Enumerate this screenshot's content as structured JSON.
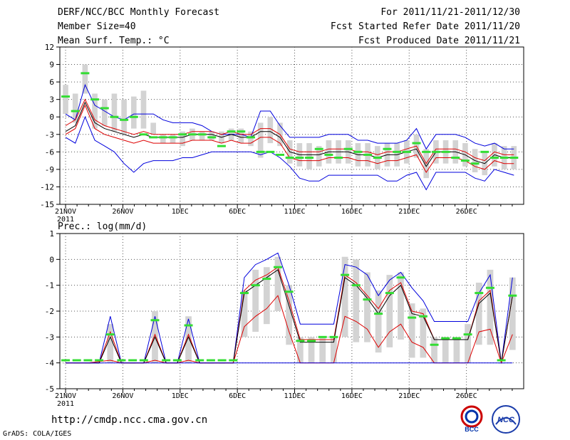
{
  "header": {
    "left": [
      "DERF/NCC/BCC Monthly Forecast",
      "Member Size=40",
      "Mean Surf. Temp.: °C"
    ],
    "right": [
      "For 2011/11/21-2011/12/30",
      "Fcst Started Refer Date 2011/11/20",
      "Fcst Produced Date 2011/11/21"
    ]
  },
  "footer": {
    "url": "http://cmdp.ncc.cma.gov.cn",
    "credit": "GrADS: COLA/IGES",
    "logo_left_text": "BCC",
    "logo_right_text": "NCC"
  },
  "colors": {
    "envelope": "#0000dd",
    "sigma": "#dd0000",
    "mean": "#000000",
    "box": "#d3d3d3",
    "mode": "#33dd33"
  },
  "chart_data": [
    {
      "type": "line",
      "title": "Mean Surf. Temp.: °C",
      "ylim": [
        -15,
        12
      ],
      "yticks": [
        12,
        9,
        6,
        3,
        0,
        -3,
        -6,
        -9,
        -12,
        -15
      ],
      "xlabels": [
        {
          "day": 1,
          "label": "21NOV",
          "sub": "2011"
        },
        {
          "day": 6,
          "label": "26NOV"
        },
        {
          "day": 11,
          "label": "1DEC"
        },
        {
          "day": 16,
          "label": "6DEC"
        },
        {
          "day": 21,
          "label": "11DEC"
        },
        {
          "day": 26,
          "label": "16DEC"
        },
        {
          "day": 31,
          "label": "21DEC"
        },
        {
          "day": 36,
          "label": "26DEC"
        }
      ],
      "series": [
        {
          "name": "max",
          "color": "blue",
          "values": [
            0.5,
            -0.5,
            5.5,
            2,
            1,
            0,
            -0.5,
            0.5,
            0.5,
            0.5,
            -0.5,
            -1,
            -1,
            -1,
            -1.5,
            -2.5,
            -3,
            -3,
            -3,
            -3.5,
            1,
            1,
            -1.5,
            -3.5,
            -3.5,
            -3.5,
            -3.5,
            -3,
            -3,
            -3,
            -4,
            -4,
            -4.5,
            -4.5,
            -4.5,
            -4,
            -2,
            -5.5,
            -3,
            -3,
            -3,
            -3.5,
            -4.5,
            -5,
            -4.5,
            -5.5,
            -5.5
          ]
        },
        {
          "name": "mean+sd",
          "color": "red",
          "values": [
            -1.5,
            -0.5,
            3,
            -0.5,
            -1.5,
            -2,
            -2.5,
            -3,
            -2.5,
            -3,
            -3,
            -3,
            -3,
            -2.5,
            -2.5,
            -2.5,
            -3,
            -2.5,
            -3,
            -3,
            -2,
            -2,
            -3,
            -5.5,
            -6,
            -6,
            -6,
            -5.5,
            -5.5,
            -5.5,
            -6,
            -6,
            -6.5,
            -6,
            -6,
            -5.5,
            -5,
            -8,
            -5.5,
            -5.5,
            -5.5,
            -6,
            -7,
            -7.5,
            -6,
            -6.5,
            -6.5
          ]
        },
        {
          "name": "mean",
          "color": "black",
          "values": [
            -2.5,
            -1.5,
            2.5,
            -1,
            -2,
            -2.5,
            -3,
            -3.5,
            -3,
            -3.5,
            -3.5,
            -3.5,
            -3.5,
            -3,
            -3,
            -3,
            -3.5,
            -3,
            -3.5,
            -3.5,
            -2.5,
            -2.5,
            -3.5,
            -6,
            -6.5,
            -6.5,
            -6.5,
            -6,
            -6,
            -6,
            -6.5,
            -6.5,
            -7,
            -6.5,
            -6.5,
            -6,
            -5.5,
            -8.5,
            -6,
            -6,
            -6,
            -6.5,
            -7.5,
            -8,
            -6.5,
            -7,
            -7
          ]
        },
        {
          "name": "mean-sd",
          "color": "red",
          "values": [
            -3,
            -2,
            2,
            -2,
            -3,
            -3.5,
            -4,
            -4.5,
            -4,
            -4.5,
            -4.5,
            -4.5,
            -4.5,
            -4,
            -4,
            -4,
            -4.5,
            -4,
            -4.5,
            -4.5,
            -3.5,
            -3.5,
            -4.5,
            -7,
            -7.5,
            -7.5,
            -7.5,
            -7,
            -7,
            -7,
            -7.5,
            -7.5,
            -8,
            -7.5,
            -7.5,
            -7,
            -6.5,
            -9.5,
            -7,
            -7,
            -7,
            -7.5,
            -8.5,
            -9,
            -7.5,
            -8,
            -8
          ]
        },
        {
          "name": "min",
          "color": "blue",
          "values": [
            -3.5,
            -4.5,
            0,
            -4,
            -5,
            -6,
            -8,
            -9.5,
            -8,
            -7.5,
            -7.5,
            -7.5,
            -7,
            -7,
            -6.5,
            -6,
            -6,
            -6,
            -6,
            -6,
            -6.5,
            -6,
            -7,
            -8.5,
            -10.5,
            -11,
            -11,
            -10,
            -10,
            -10,
            -10,
            -10,
            -10,
            -11,
            -11,
            -10,
            -9.5,
            -12.5,
            -9.5,
            -9.5,
            -9.5,
            -9.5,
            -10.5,
            -11,
            -9,
            -9.5,
            -10
          ]
        }
      ],
      "boxes": [
        [
          0.5,
          5.5
        ],
        [
          -1,
          4
        ],
        [
          4,
          9
        ],
        [
          -2,
          4
        ],
        [
          -1.5,
          3
        ],
        [
          -2.5,
          4
        ],
        [
          -3,
          3
        ],
        [
          -2,
          3.5
        ],
        [
          -2,
          4.5
        ],
        [
          -3,
          -1
        ],
        [
          -4.5,
          -3
        ],
        [
          -4.5,
          -3
        ],
        [
          -5,
          -2.5
        ],
        [
          -4,
          -2
        ],
        [
          -4,
          -2.5
        ],
        [
          -4,
          -2.5
        ],
        [
          -4.5,
          -2.5
        ],
        [
          -4,
          -2
        ],
        [
          -4.5,
          -2
        ],
        [
          -5,
          -2.5
        ],
        [
          -7,
          -1
        ],
        [
          -4.5,
          0
        ],
        [
          -5,
          -1
        ],
        [
          -8,
          -4
        ],
        [
          -8.5,
          -4.5
        ],
        [
          -9,
          -4.5
        ],
        [
          -8.5,
          -5
        ],
        [
          -8,
          -4
        ],
        [
          -8,
          -4
        ],
        [
          -8,
          -4
        ],
        [
          -8.5,
          -4.5
        ],
        [
          -8.5,
          -4.5
        ],
        [
          -9,
          -5
        ],
        [
          -8.5,
          -4.5
        ],
        [
          -8.5,
          -4.5
        ],
        [
          -8,
          -4
        ],
        [
          -7,
          -3
        ],
        [
          -10.5,
          -5.5
        ],
        [
          -8,
          -4
        ],
        [
          -8,
          -4
        ],
        [
          -8,
          -4
        ],
        [
          -8.5,
          -4.5
        ],
        [
          -9.5,
          -5.5
        ],
        [
          -10,
          -6
        ],
        [
          -8.5,
          -4.5
        ],
        [
          -9,
          -5
        ],
        [
          -9,
          -5
        ]
      ],
      "mode": [
        3.5,
        1,
        7.5,
        3,
        1.5,
        0,
        -0.5,
        0,
        -3,
        -3.5,
        -3.5,
        -3.5,
        -3,
        -3,
        -3,
        -3.5,
        -5,
        -2.5,
        -2.5,
        -3.5,
        -6,
        -6,
        -6.5,
        -7,
        -7,
        -7,
        -5.5,
        -6.5,
        -7,
        -5.5,
        -6,
        -6.5,
        -7,
        -5.5,
        -6,
        -6,
        -4.5,
        -6,
        -6,
        -6,
        -7,
        -7.5,
        -8,
        -6,
        -7,
        -7,
        -7
      ]
    },
    {
      "type": "line",
      "title": "Prec.: log(mm/d)",
      "ylim": [
        -5,
        1
      ],
      "yticks": [
        1,
        0,
        -1,
        -2,
        -3,
        -4,
        -5
      ],
      "xlabels": [
        {
          "day": 1,
          "label": "21NOV",
          "sub": "2011"
        },
        {
          "day": 6,
          "label": "26NOV"
        },
        {
          "day": 11,
          "label": "1DEC"
        },
        {
          "day": 16,
          "label": "6DEC"
        },
        {
          "day": 21,
          "label": "11DEC"
        },
        {
          "day": 26,
          "label": "16DEC"
        },
        {
          "day": 31,
          "label": "21DEC"
        },
        {
          "day": 36,
          "label": "26DEC"
        }
      ],
      "series": [
        {
          "name": "max",
          "color": "blue",
          "values": [
            -4,
            -4,
            -4,
            -4,
            -2.2,
            -4,
            -4,
            -4,
            -2.2,
            -4,
            -4,
            -2.3,
            -4,
            -4,
            -4,
            -4,
            -0.7,
            -0.2,
            0,
            0.25,
            -1,
            -2.5,
            -2.5,
            -2.5,
            -2.5,
            -0.2,
            -0.3,
            -0.6,
            -1.4,
            -0.8,
            -0.5,
            -1.1,
            -1.6,
            -2.4,
            -2.4,
            -2.4,
            -2.4,
            -1.3,
            -0.6,
            -4,
            -0.7
          ]
        },
        {
          "name": "mean+sd",
          "color": "red",
          "values": [
            -4,
            -4,
            -4,
            -4,
            -2.8,
            -4,
            -4,
            -4,
            -2.9,
            -4,
            -4,
            -2.9,
            -4,
            -4,
            -4,
            -4,
            -1.2,
            -0.8,
            -0.6,
            -0.3,
            -1.6,
            -3.1,
            -3.1,
            -3.1,
            -3.1,
            -0.6,
            -0.9,
            -1.4,
            -1.9,
            -1.2,
            -0.9,
            -2,
            -2.1,
            -3.1,
            -3.1,
            -3.1,
            -3.1,
            -1.6,
            -1.2,
            -4,
            -1.4
          ]
        },
        {
          "name": "mean",
          "color": "black",
          "values": [
            -4,
            -4,
            -4,
            -4,
            -3,
            -4,
            -4,
            -4,
            -3,
            -4,
            -4,
            -3,
            -4,
            -4,
            -4,
            -4,
            -1.3,
            -1,
            -0.7,
            -0.4,
            -1.8,
            -3.2,
            -3.2,
            -3.2,
            -3.2,
            -0.7,
            -1,
            -1.5,
            -2.1,
            -1.4,
            -1,
            -2.1,
            -2.2,
            -3.1,
            -3.1,
            -3.1,
            -3.1,
            -1.7,
            -1.3,
            -4,
            -1.4
          ]
        },
        {
          "name": "mean-sd",
          "color": "red",
          "values": [
            -4,
            -4,
            -4,
            -3.95,
            -3.9,
            -4,
            -4,
            -4,
            -3.9,
            -4,
            -4,
            -3.9,
            -4,
            -4,
            -4,
            -4,
            -2.6,
            -2.2,
            -1.9,
            -1.4,
            -2.8,
            -4,
            -4,
            -4,
            -4,
            -2.2,
            -2.4,
            -2.7,
            -3.4,
            -2.8,
            -2.5,
            -3.2,
            -3.4,
            -4,
            -4,
            -4,
            -4,
            -2.8,
            -2.7,
            -4,
            -2.9
          ]
        },
        {
          "name": "min",
          "color": "blue",
          "values": [
            -4,
            -4,
            -4,
            -4,
            -4,
            -4,
            -4,
            -4,
            -4,
            -4,
            -4,
            -4,
            -4,
            -4,
            -4,
            -4,
            -4,
            -4,
            -4,
            -4,
            -4,
            -4,
            -4,
            -4,
            -4,
            -4,
            -4,
            -4,
            -4,
            -4,
            -4,
            -4,
            -4,
            -4,
            -4,
            -4,
            -4,
            -4,
            -4,
            -4,
            -4
          ]
        }
      ],
      "boxes": [
        [
          -4,
          -4
        ],
        [
          -4,
          -4
        ],
        [
          -4,
          -4
        ],
        [
          -4,
          -4
        ],
        [
          -4,
          -2.5
        ],
        [
          -4,
          -4
        ],
        [
          -4,
          -4
        ],
        [
          -4,
          -4
        ],
        [
          -4,
          -2
        ],
        [
          -4,
          -4
        ],
        [
          -4,
          -4
        ],
        [
          -4,
          -2.2
        ],
        [
          -4,
          -4
        ],
        [
          -4,
          -4
        ],
        [
          -4,
          -4
        ],
        [
          -4,
          -4
        ],
        [
          -3,
          -1.2
        ],
        [
          -2.8,
          -0.4
        ],
        [
          -2.5,
          -0.3
        ],
        [
          -2,
          0.1
        ],
        [
          -3.3,
          -1
        ],
        [
          -4,
          -3
        ],
        [
          -4,
          -3
        ],
        [
          -4,
          -3
        ],
        [
          -4,
          -3
        ],
        [
          -3,
          0.1
        ],
        [
          -3.2,
          0
        ],
        [
          -3.2,
          -0.5
        ],
        [
          -3.6,
          -1.2
        ],
        [
          -3.4,
          -0.6
        ],
        [
          -3.1,
          -0.5
        ],
        [
          -3.8,
          -1.7
        ],
        [
          -3.8,
          -1.9
        ],
        [
          -4,
          -3
        ],
        [
          -4,
          -3
        ],
        [
          -4,
          -3
        ],
        [
          -4,
          -2.5
        ],
        [
          -3.3,
          -0.9
        ],
        [
          -3.3,
          -0.4
        ],
        [
          -4,
          -4
        ],
        [
          -3.5,
          -0.7
        ]
      ],
      "mode": [
        -3.9,
        -3.9,
        -3.9,
        -3.9,
        -2.9,
        -3.9,
        -3.9,
        -3.9,
        -2.35,
        -3.9,
        -3.9,
        -2.55,
        -3.9,
        -3.9,
        -3.9,
        -3.9,
        -1.3,
        -1,
        -0.75,
        -0.3,
        -1.25,
        -3.15,
        -3.15,
        -3,
        -3,
        -0.6,
        -1,
        -1.55,
        -2.1,
        -1.3,
        -0.7,
        -2.25,
        -2.2,
        -3.3,
        -3.05,
        -3.05,
        -2.9,
        -1.3,
        -1.1,
        -3.9,
        -1.4
      ]
    }
  ]
}
